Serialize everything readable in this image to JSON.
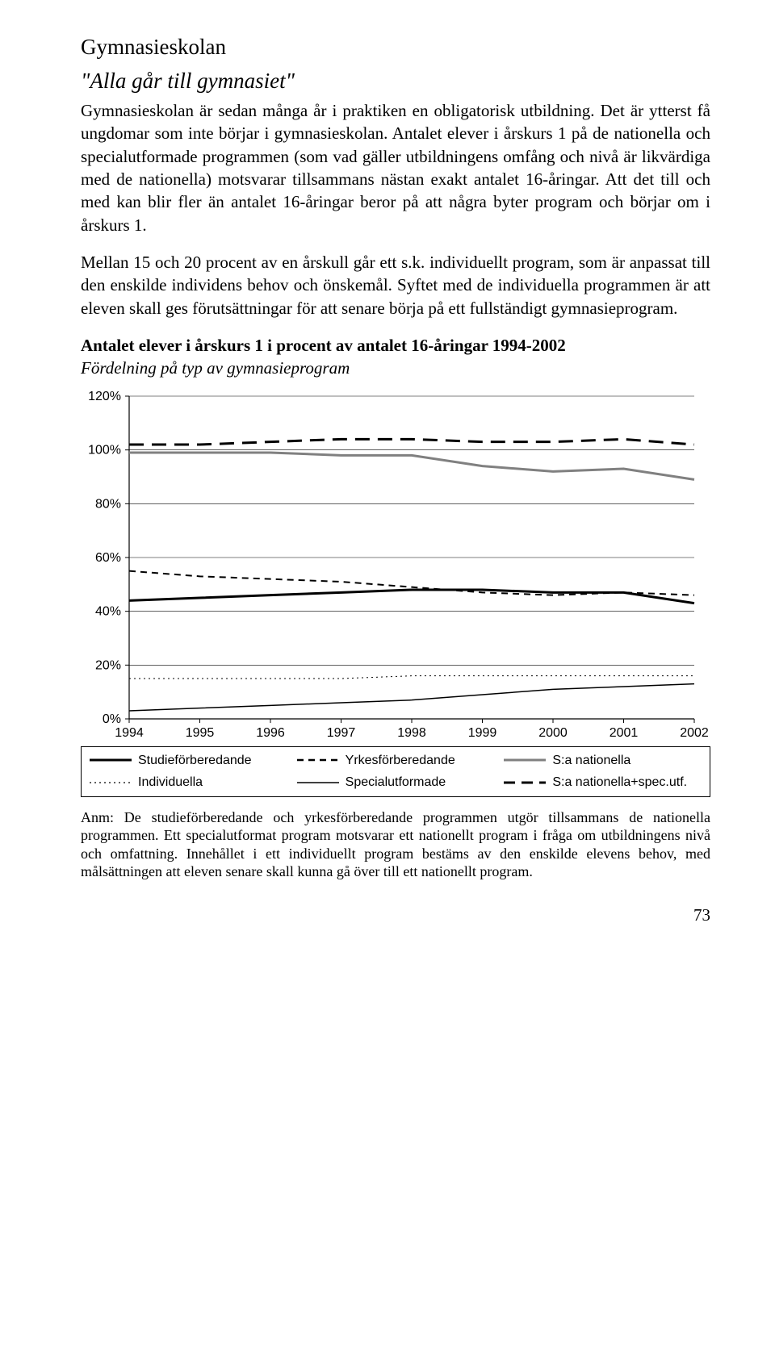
{
  "heading": "Gymnasieskolan",
  "quote": "\"Alla går till gymnasiet\"",
  "para1": "Gymnasieskolan är sedan många år i praktiken en obligatorisk utbildning. Det är ytterst få ungdomar som inte börjar i gymnasieskolan. Antalet elever i årskurs 1 på de nationella och specialutformade programmen (som vad gäller utbildningens omfång och nivå är likvärdiga med de nationella) motsvarar tillsammans nästan exakt antalet 16-åringar. Att det till och med kan blir fler än antalet 16-åringar beror på att några byter program och börjar om i årskurs 1.",
  "para2": "Mellan 15 och 20 procent av en årskull går ett s.k. individuellt program, som är anpassat till den enskilde individens behov och önskemål. Syftet med de individuella programmen är att eleven skall ges förutsättningar för att senare börja på ett fullständigt gymnasieprogram.",
  "chart_title": "Antalet elever i årskurs 1 i procent av antalet 16-åringar 1994-2002",
  "chart_subtitle": "Fördelning på typ av gymnasieprogram",
  "chart": {
    "type": "line",
    "x_categories": [
      "1994",
      "1995",
      "1996",
      "1997",
      "1998",
      "1999",
      "2000",
      "2001",
      "2002"
    ],
    "y_ticks": [
      "0%",
      "20%",
      "40%",
      "60%",
      "80%",
      "100%",
      "120%"
    ],
    "y_min": 0,
    "y_max": 120,
    "plot_bg": "#ffffff",
    "grid_color": "#000000",
    "series": {
      "studie": {
        "label": "Studieförberedande",
        "color": "#000000",
        "width": 3,
        "dash": "",
        "values": [
          44,
          45,
          46,
          47,
          48,
          48,
          47,
          47,
          43
        ]
      },
      "yrkes": {
        "label": "Yrkesförberedande",
        "color": "#000000",
        "width": 2,
        "dash": "8 6",
        "values": [
          55,
          53,
          52,
          51,
          49,
          47,
          46,
          47,
          46
        ]
      },
      "sanat": {
        "label": "S:a nationella",
        "color": "#808080",
        "width": 3,
        "dash": "",
        "values": [
          99,
          99,
          99,
          98,
          98,
          94,
          92,
          93,
          89
        ]
      },
      "indiv": {
        "label": "Individuella",
        "color": "#000000",
        "width": 1,
        "dash": "2 4",
        "values": [
          15,
          15,
          15,
          15,
          16,
          16,
          16,
          16,
          16
        ]
      },
      "spec": {
        "label": "Specialutformade",
        "color": "#000000",
        "width": 1.5,
        "dash": "",
        "values": [
          3,
          4,
          5,
          6,
          7,
          9,
          11,
          12,
          13
        ]
      },
      "total": {
        "label": "S:a nationella+spec.utf.",
        "color": "#000000",
        "width": 3,
        "dash": "18 10",
        "values": [
          102,
          102,
          103,
          104,
          104,
          103,
          103,
          104,
          102
        ]
      }
    }
  },
  "legend": {
    "studie": "Studieförberedande",
    "yrkes": "Yrkesförberedande",
    "sanat": "S:a nationella",
    "indiv": "Individuella",
    "spec": "Specialutformade",
    "total": "S:a nationella+spec.utf."
  },
  "footnote": "Anm: De studieförberedande och yrkesförberedande programmen utgör tillsammans de nationella programmen. Ett specialutformat program motsvarar ett nationellt program i fråga om utbildningens nivå och omfattning. Innehållet i ett individuellt program bestäms av den enskilde elevens behov, med målsättningen att eleven senare skall kunna gå över till ett nationellt program.",
  "page_number": "73"
}
